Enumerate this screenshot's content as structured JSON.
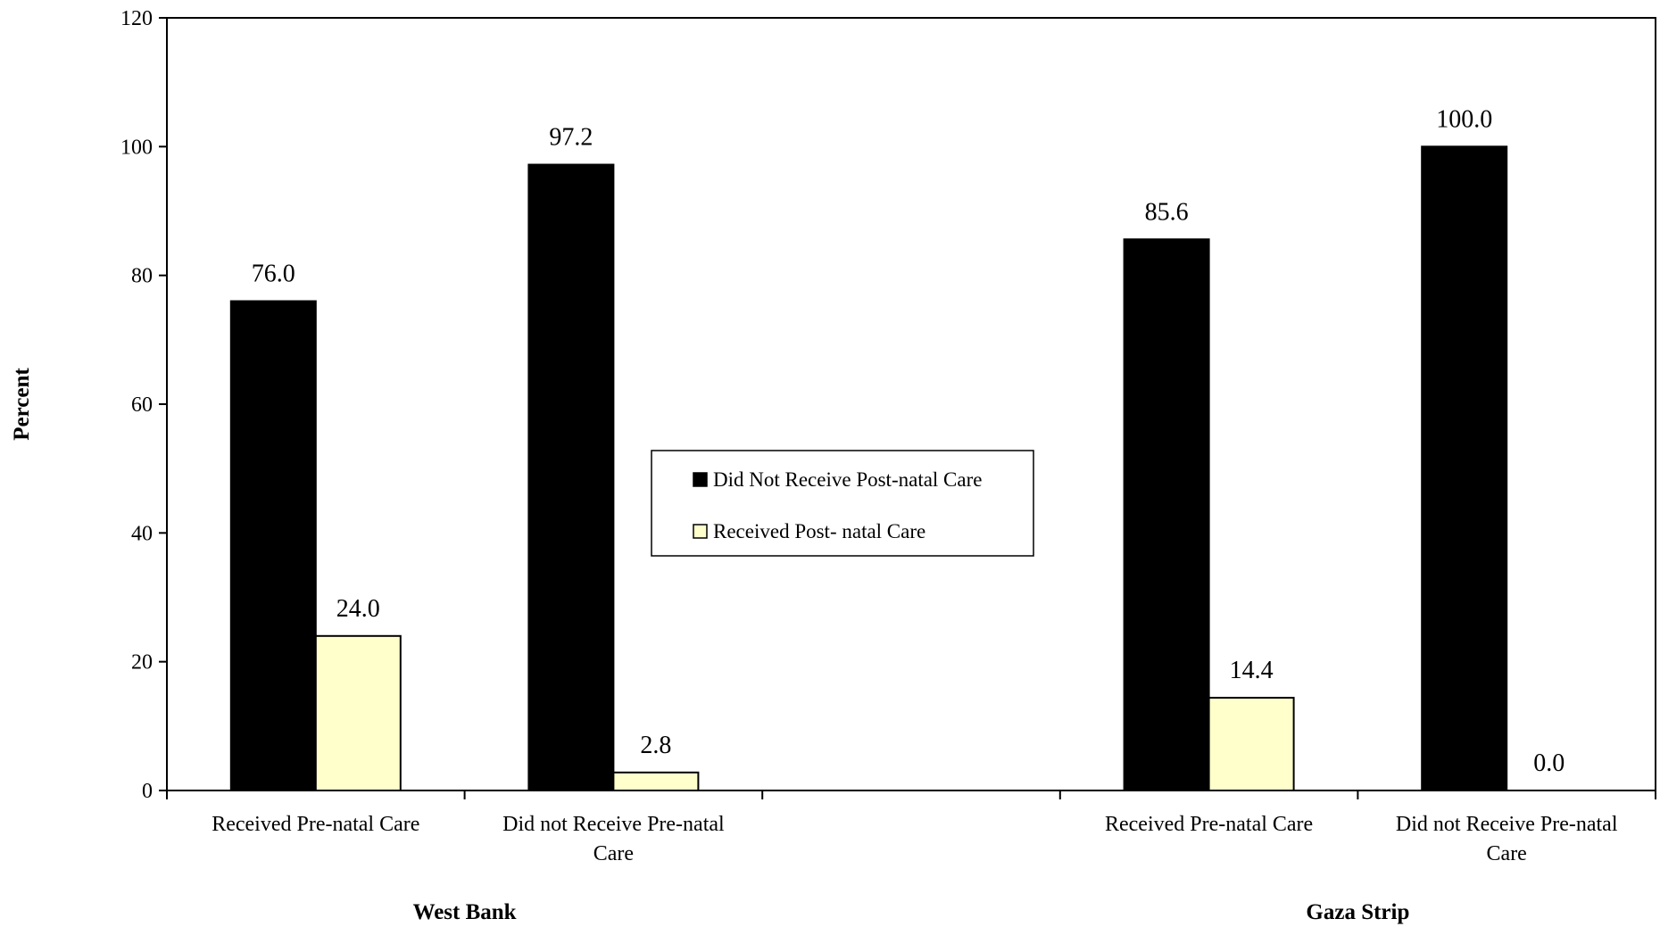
{
  "chart_data": {
    "type": "bar",
    "ylabel": "Percent",
    "ylim": [
      0,
      120
    ],
    "yticks": [
      0,
      20,
      40,
      60,
      80,
      100,
      120
    ],
    "grid": false,
    "legend_position": "center",
    "groups": [
      {
        "name": "West Bank",
        "categories": [
          "Received Pre-natal Care",
          "Did not Receive Pre-natal Care"
        ]
      },
      {
        "name": "Gaza Strip",
        "categories": [
          "Received Pre-natal Care",
          "Did not Receive Pre-natal Care"
        ]
      }
    ],
    "series": [
      {
        "name": "Did Not Receive Post-natal Care",
        "color": "#000000",
        "values": [
          76.0,
          97.2,
          85.6,
          100.0
        ],
        "labels": [
          "76.0",
          "97.2",
          "85.6",
          "100.0"
        ]
      },
      {
        "name": "Received Post- natal Care",
        "color": "#ffffcc",
        "values": [
          24.0,
          2.8,
          14.4,
          0.0
        ],
        "labels": [
          "24.0",
          "2.8",
          "14.4",
          "0.0"
        ]
      }
    ]
  }
}
